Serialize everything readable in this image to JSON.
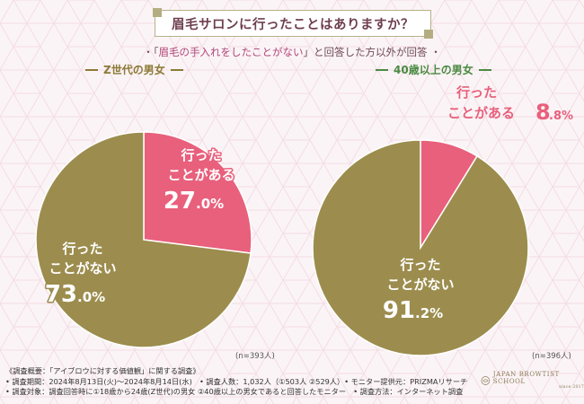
{
  "header": {
    "title": "眉毛サロンに行ったことはありますか？",
    "subtitle_prefix": "・「",
    "subtitle_highlight": "眉毛の手入れをしたことがない",
    "subtitle_suffix": "」と回答した方以外が回答 ・"
  },
  "colors": {
    "went": "#e8607c",
    "never": "#9c8d4e",
    "gen_z_accent": "#8c7a35",
    "over40_accent": "#4a8a42"
  },
  "chart_data": [
    {
      "type": "pie",
      "title": "Z世代の男女",
      "sample": "(n=393人)",
      "slices": [
        {
          "label_line1": "行った",
          "label_line2": "ことがある",
          "value": 27.0,
          "value_int": "27",
          "value_dec": ".0%"
        },
        {
          "label_line1": "行った",
          "label_line2": "ことがない",
          "value": 73.0,
          "value_int": "73",
          "value_dec": ".0%"
        }
      ]
    },
    {
      "type": "pie",
      "title": "40歳以上の男女",
      "sample": "(n=396人)",
      "slices": [
        {
          "label_line1": "行った",
          "label_line2": "ことがある",
          "value": 8.8,
          "value_int": "8",
          "value_dec": ".8%"
        },
        {
          "label_line1": "行った",
          "label_line2": "ことがない",
          "value": 91.2,
          "value_int": "91",
          "value_dec": ".2%"
        }
      ]
    }
  ],
  "footer": {
    "line1": "《調査概要：「アイブロウに対する価値観」に関する調査》",
    "line2": "• 調査期間：2024年8月13日(火)〜2024年8月14日(水)　• 調査人数：1,032人（①503人 ②529人）• モニター提供元：PRIZMAリサーチ",
    "line3": "• 調査対象：調査回答時に①18歳から24歳(Z世代)の男女 ②40歳以上の男女であると回答したモニター　• 調査方法：インターネット調査"
  },
  "logo": {
    "name": "JAPAN BROWTIST SCHOOL",
    "sub": "since 2017"
  }
}
